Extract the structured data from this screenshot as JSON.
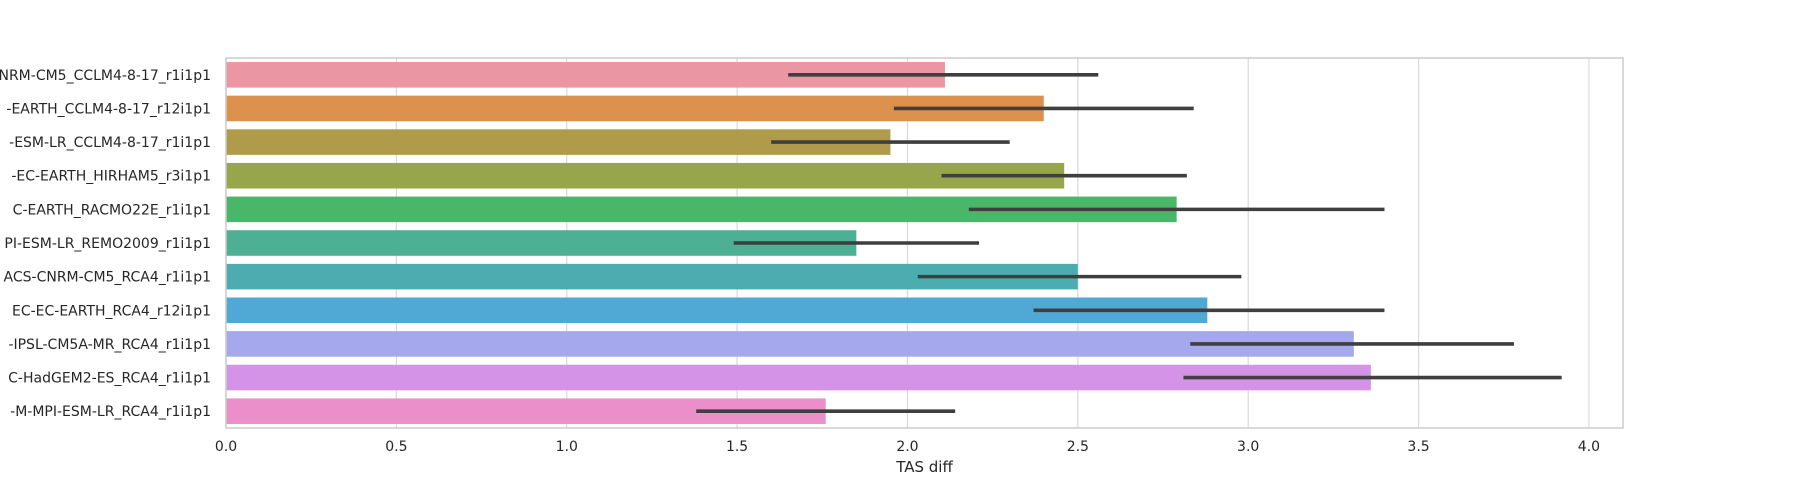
{
  "chart_data": {
    "type": "bar",
    "orientation": "horizontal",
    "title": "",
    "xlabel": "TAS diff",
    "ylabel": "",
    "xlim": [
      0,
      4.1
    ],
    "xticks": [
      "0.0",
      "0.5",
      "1.0",
      "1.5",
      "2.0",
      "2.5",
      "3.0",
      "3.5",
      "4.0"
    ],
    "grid": "vertical",
    "categories": [
      "NRM-CM5_CCLM4-8-17_r1i1p1",
      "-EARTH_CCLM4-8-17_r12i1p1",
      "-ESM-LR_CCLM4-8-17_r1i1p1",
      "-EC-EARTH_HIRHAM5_r3i1p1",
      "C-EARTH_RACMO22E_r1i1p1",
      "PI-ESM-LR_REMO2009_r1i1p1",
      "ACS-CNRM-CM5_RCA4_r1i1p1",
      "EC-EC-EARTH_RCA4_r12i1p1",
      "-IPSL-CM5A-MR_RCA4_r1i1p1",
      "C-HadGEM2-ES_RCA4_r1i1p1",
      "-M-MPI-ESM-LR_RCA4_r1i1p1"
    ],
    "values": [
      2.11,
      2.4,
      1.95,
      2.46,
      2.79,
      1.85,
      2.5,
      2.88,
      3.31,
      3.36,
      1.76
    ],
    "ci_low": [
      1.65,
      1.96,
      1.6,
      2.1,
      2.18,
      1.49,
      2.03,
      2.37,
      2.83,
      2.81,
      1.38
    ],
    "ci_high": [
      2.56,
      2.84,
      2.3,
      2.82,
      3.4,
      2.21,
      2.98,
      3.4,
      3.78,
      3.92,
      2.14
    ],
    "colors": [
      "#eb96a3",
      "#dc914f",
      "#b09b4b",
      "#97a64a",
      "#4ab66a",
      "#4daf93",
      "#4cacaf",
      "#4fa9d4",
      "#a5a8ed",
      "#d593e8",
      "#ea8fc9"
    ]
  }
}
